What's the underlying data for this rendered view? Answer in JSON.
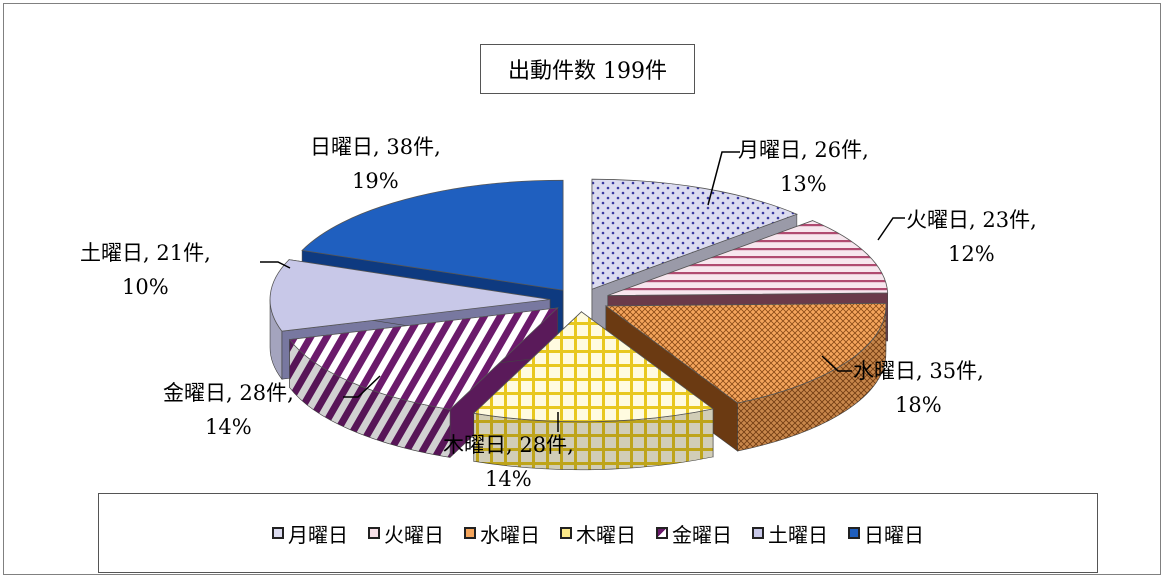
{
  "chart_data": {
    "type": "pie",
    "title": "出動件数 199件",
    "total": 199,
    "slices": [
      {
        "label": "月曜日",
        "value": 26,
        "percent": "13%",
        "text": "月曜日, 26件,",
        "color": "#dcdcf0",
        "style": "dots"
      },
      {
        "label": "火曜日",
        "value": 23,
        "percent": "12%",
        "text": "火曜日, 23件,",
        "color": "#f7e0e8",
        "style": "h-stripes"
      },
      {
        "label": "水曜日",
        "value": 35,
        "percent": "18%",
        "text": "水曜日, 35件,",
        "color": "#f5a55c",
        "style": "cross"
      },
      {
        "label": "木曜日",
        "value": 28,
        "percent": "14%",
        "text": "木曜日, 28件,",
        "color": "#fce98a",
        "style": "grid"
      },
      {
        "label": "金曜日",
        "value": 28,
        "percent": "14%",
        "text": "金曜日, 28件,",
        "color": "#6b1a6b",
        "style": "d-stripes"
      },
      {
        "label": "土曜日",
        "value": 21,
        "percent": "10%",
        "text": "土曜日, 21件,",
        "color": "#c8c8e8",
        "style": "solid"
      },
      {
        "label": "日曜日",
        "value": 38,
        "percent": "19%",
        "text": "日曜日, 38件,",
        "color": "#1f5fbf",
        "style": "solid"
      }
    ],
    "legend_position": "bottom"
  }
}
